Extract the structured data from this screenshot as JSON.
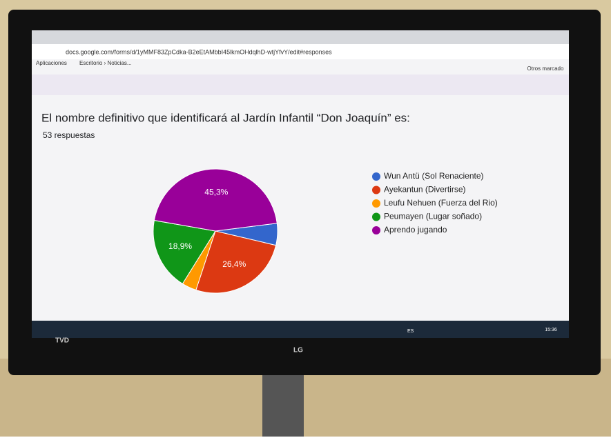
{
  "browser": {
    "url": "docs.google.com/forms/d/1yMMF83ZpCdka-B2eEtAMbbI45lkmOHdqlhD-wtjYfvY/edit#responses",
    "bookmarks": [
      "Aplicaciones",
      "Escritorio › Noticias...",
      "Otros marcado"
    ]
  },
  "tv": {
    "brand": "LG",
    "logo": "TVD",
    "clock": "15:36",
    "language": "ES"
  },
  "chart_data": {
    "type": "pie",
    "title": "El nombre definitivo que identificará al Jardín Infantil “Don Joaquín” es:",
    "subtitle": "53 respuestas",
    "categories": [
      "Wun Antü (Sol Renaciente)",
      "Ayekantun (Divertirse)",
      "Leufu Nehuen (Fuerza del Rio)",
      "Peumayen (Lugar soñado)",
      "Aprendo jugando"
    ],
    "values": [
      5.7,
      26.4,
      3.8,
      18.9,
      45.3
    ],
    "value_labels": [
      null,
      "26,4%",
      null,
      "18,9%",
      "45,3%"
    ],
    "colors": [
      "#3366cc",
      "#dc3912",
      "#ff9900",
      "#109618",
      "#990099"
    ],
    "legend": "right"
  }
}
